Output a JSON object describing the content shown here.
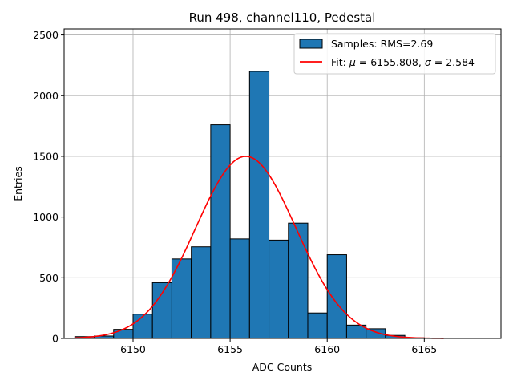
{
  "chart_data": {
    "type": "bar",
    "title": "Run 498, channel110, Pedestal",
    "xlabel": "ADC Counts",
    "ylabel": "Entries",
    "xlim": [
      6146.45,
      6168.95
    ],
    "ylim": [
      0,
      2550
    ],
    "xticks": [
      6150,
      6155,
      6160,
      6165
    ],
    "yticks": [
      0,
      500,
      1000,
      1500,
      2000,
      2500
    ],
    "grid": true,
    "legend_position": "top-right",
    "colors": {
      "bars": "#1f77b4",
      "bar_edge": "#000000",
      "fit": "#ff0000",
      "grid": "#b0b0b0"
    },
    "histogram": {
      "name": "Samples: RMS=2.69",
      "bin_edges": [
        6147.0,
        6148.0,
        6149.0,
        6150.0,
        6151.0,
        6152.0,
        6153.0,
        6154.0,
        6155.0,
        6156.0,
        6157.0,
        6158.0,
        6159.0,
        6160.0,
        6161.0,
        6162.0,
        6163.0,
        6164.0,
        6165.0
      ],
      "counts": [
        15,
        20,
        75,
        200,
        460,
        655,
        755,
        1760,
        820,
        2200,
        810,
        950,
        210,
        690,
        110,
        80,
        25,
        5
      ]
    },
    "fit": {
      "name_prefix": "Fit: ",
      "mu_label": "μ",
      "mu_value": "6155.808",
      "sigma_label": "σ",
      "sigma_value": "2.584",
      "mu": 6155.808,
      "sigma": 2.584,
      "amplitude": 1500,
      "x_range": [
        6147.0,
        6166.0
      ]
    }
  }
}
